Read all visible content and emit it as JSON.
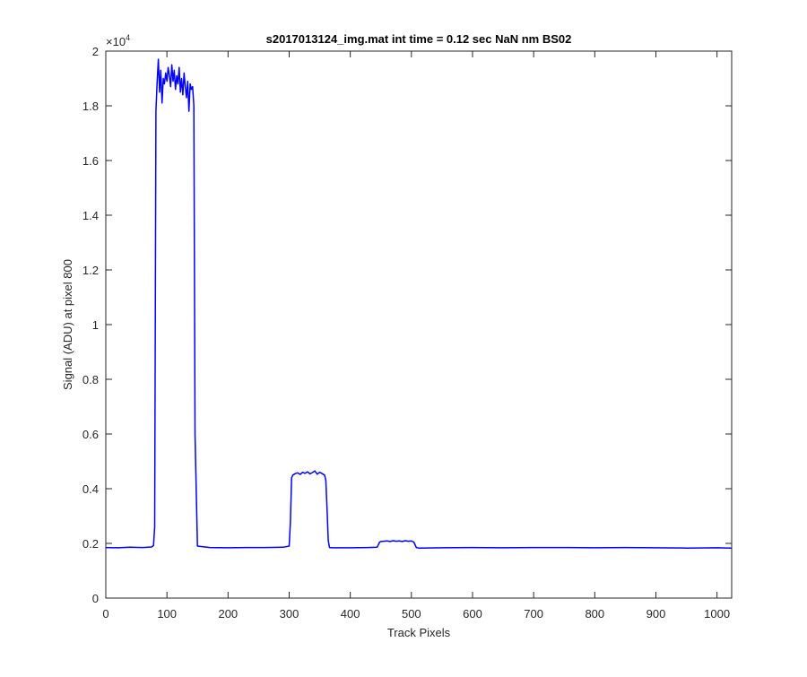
{
  "chart_data": {
    "type": "line",
    "title": "s2017013124_img.mat int time = 0.12 sec  NaN nm BS02",
    "xlabel": "Track Pixels",
    "ylabel": "Signal (ADU) at pixel 800",
    "xlim": [
      0,
      1024
    ],
    "ylim": [
      0,
      20000
    ],
    "y_exponent_label": "×10",
    "y_exponent_power": "4",
    "x_ticks": [
      0,
      100,
      200,
      300,
      400,
      500,
      600,
      700,
      800,
      900,
      1000
    ],
    "x_tick_labels": [
      "0",
      "100",
      "200",
      "300",
      "400",
      "500",
      "600",
      "700",
      "800",
      "900",
      "1000"
    ],
    "y_ticks": [
      0,
      2000,
      4000,
      6000,
      8000,
      10000,
      12000,
      14000,
      16000,
      18000,
      20000
    ],
    "y_tick_labels": [
      "0",
      "0.2",
      "0.4",
      "0.6",
      "0.8",
      "1",
      "1.2",
      "1.4",
      "1.6",
      "1.8",
      "2"
    ],
    "grid": false,
    "line_color": "#0000ff",
    "series": [
      {
        "x": [
          0,
          20,
          40,
          60,
          75,
          78,
          80,
          82,
          84,
          86,
          88,
          90,
          92,
          94,
          96,
          98,
          100,
          102,
          104,
          106,
          108,
          110,
          112,
          114,
          116,
          118,
          120,
          122,
          124,
          126,
          128,
          130,
          132,
          134,
          136,
          138,
          140,
          142,
          144,
          146,
          150,
          170,
          200,
          230,
          260,
          290,
          300,
          302,
          304,
          306,
          310,
          314,
          318,
          322,
          326,
          330,
          334,
          338,
          342,
          346,
          350,
          354,
          358,
          360,
          362,
          364,
          366,
          370,
          400,
          430,
          444,
          446,
          448,
          450,
          455,
          460,
          465,
          470,
          475,
          480,
          485,
          490,
          495,
          500,
          504,
          506,
          508,
          512,
          550,
          600,
          650,
          700,
          750,
          800,
          850,
          900,
          950,
          1000,
          1024
        ],
        "y": [
          1850,
          1840,
          1860,
          1850,
          1870,
          1920,
          2600,
          17800,
          18900,
          19700,
          18500,
          19300,
          18100,
          19000,
          18800,
          19200,
          18900,
          19400,
          19100,
          18700,
          19500,
          18900,
          19300,
          18600,
          19100,
          18800,
          19400,
          18500,
          19000,
          18400,
          19200,
          18700,
          18300,
          18900,
          17800,
          18800,
          18600,
          18700,
          18000,
          6000,
          1900,
          1850,
          1840,
          1850,
          1850,
          1860,
          1900,
          2800,
          4400,
          4500,
          4550,
          4580,
          4520,
          4600,
          4560,
          4620,
          4540,
          4590,
          4650,
          4530,
          4600,
          4550,
          4500,
          4300,
          3200,
          2100,
          1850,
          1840,
          1840,
          1850,
          1860,
          1950,
          2050,
          2070,
          2080,
          2090,
          2070,
          2100,
          2080,
          2090,
          2070,
          2100,
          2080,
          2090,
          2050,
          1950,
          1850,
          1830,
          1840,
          1850,
          1840,
          1850,
          1850,
          1840,
          1850,
          1840,
          1830,
          1840,
          1830
        ]
      }
    ]
  }
}
